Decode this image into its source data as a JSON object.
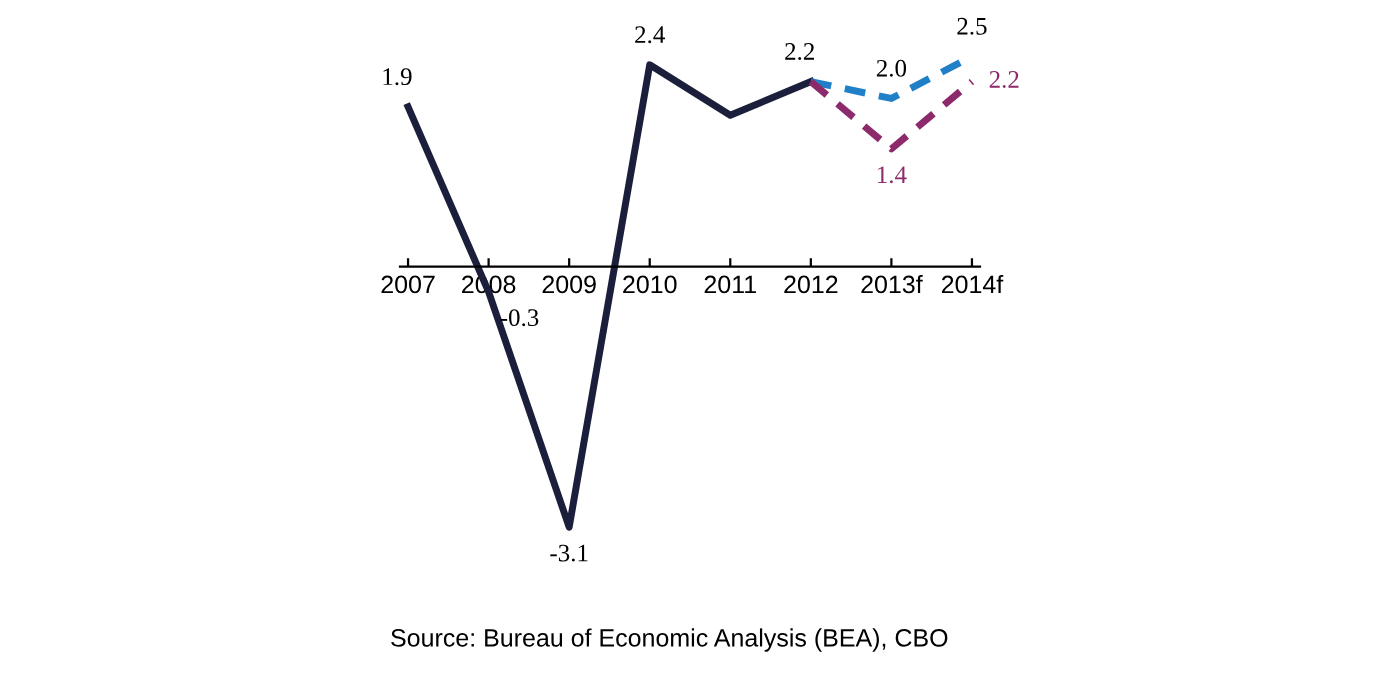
{
  "chart_data": {
    "type": "line",
    "categories": [
      "2007",
      "2008",
      "2009",
      "2010",
      "2011",
      "2012",
      "2013f",
      "2014f"
    ],
    "series": [
      {
        "color": "#1b1f3b",
        "values": [
          1.9,
          -0.3,
          -3.1,
          2.4,
          1.8,
          2.2,
          null,
          null
        ],
        "value_labels": [
          "1.9",
          "-0.3",
          "-3.1",
          "2.4",
          null,
          "2.2",
          null,
          null
        ],
        "line_style": "solid"
      },
      {
        "color": "#1f80c8",
        "values": [
          null,
          null,
          null,
          null,
          null,
          2.2,
          2.0,
          2.5
        ],
        "value_labels": [
          null,
          null,
          null,
          null,
          null,
          null,
          "2.0",
          "2.5"
        ],
        "line_style": "dashed"
      },
      {
        "color": "#8c2a6c",
        "values": [
          null,
          null,
          null,
          null,
          null,
          2.2,
          1.4,
          2.2
        ],
        "value_labels": [
          null,
          null,
          null,
          null,
          null,
          null,
          "1.4",
          "2.2"
        ],
        "line_style": "dashed"
      }
    ],
    "annotations": [
      "Source: Bureau of Economic Analysis (BEA), CBO"
    ],
    "legend": false,
    "grid": false,
    "marker": "none"
  }
}
